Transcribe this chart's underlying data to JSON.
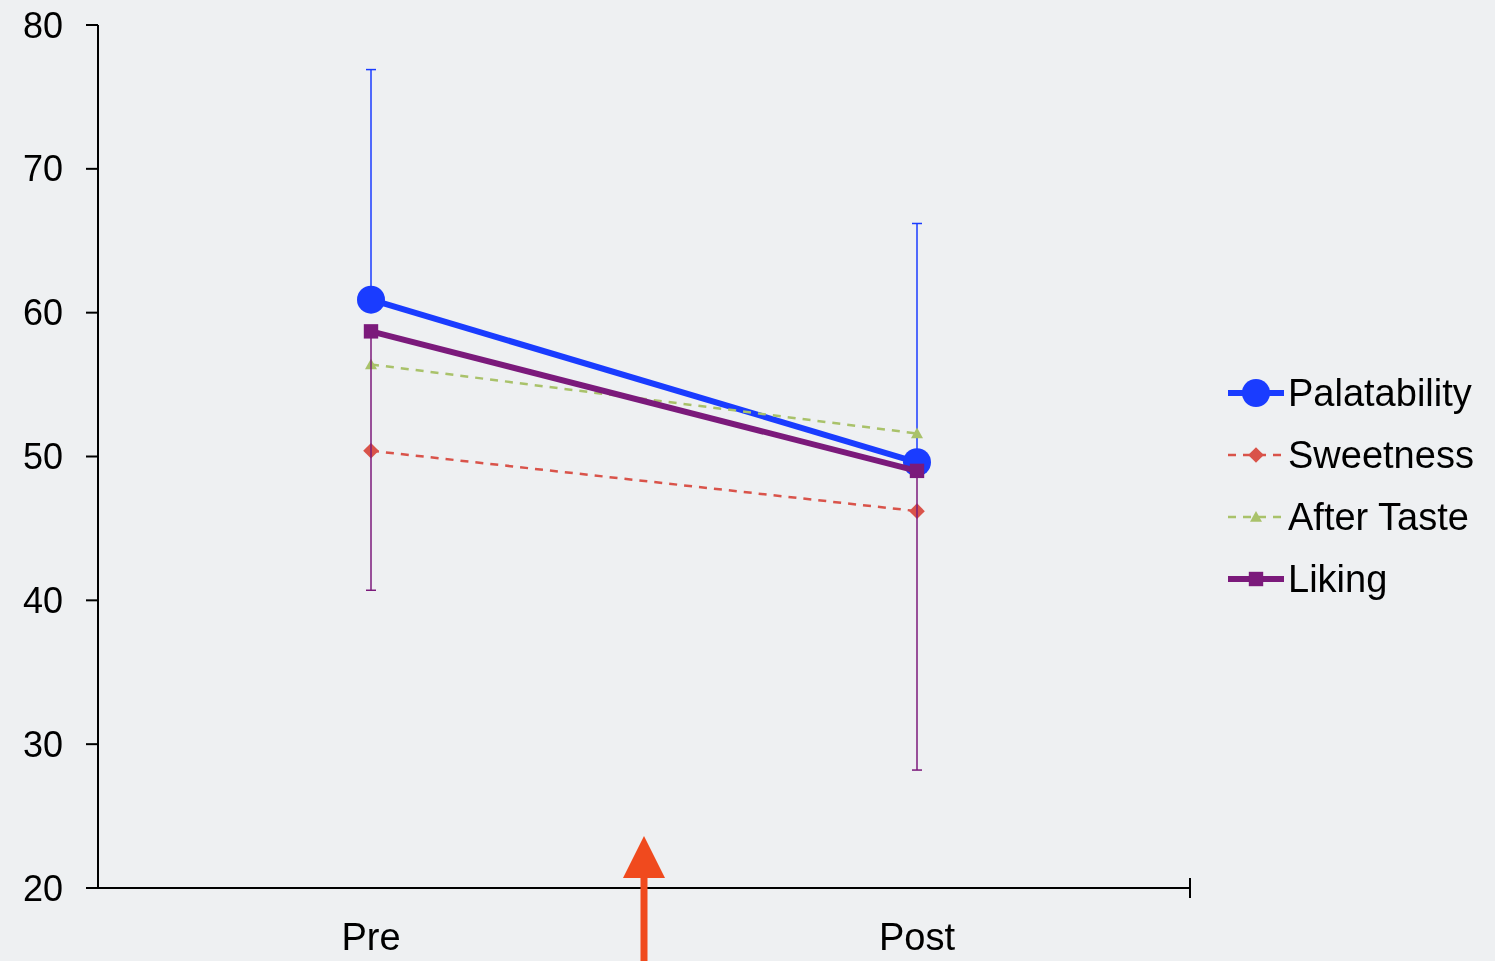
{
  "chart_data": {
    "type": "line",
    "categories": [
      "Pre",
      "Post"
    ],
    "ylim": [
      20,
      80
    ],
    "yticks": [
      20,
      30,
      40,
      50,
      60,
      70,
      80
    ],
    "grid": false,
    "legend": "right",
    "series": [
      {
        "name": "Palatability",
        "color": "#1a3cff",
        "values": [
          60.9,
          49.6
        ],
        "marker": "circle",
        "line_style": "solid",
        "errors": [
          [
            60.9,
            76.9
          ],
          [
            49.6,
            66.2
          ]
        ]
      },
      {
        "name": "Sweetness",
        "color": "#d9534a",
        "values": [
          50.4,
          46.2
        ],
        "marker": "diamond",
        "line_style": "dashed"
      },
      {
        "name": "After Taste",
        "color": "#a9c26a",
        "values": [
          56.4,
          51.6
        ],
        "marker": "triangle",
        "line_style": "dashed"
      },
      {
        "name": "Liking",
        "color": "#7b1a7b",
        "values": [
          58.7,
          49.0
        ],
        "marker": "square",
        "line_style": "solid",
        "errors": [
          [
            40.7,
            58.7
          ],
          [
            28.2,
            49.0
          ]
        ]
      }
    ]
  }
}
